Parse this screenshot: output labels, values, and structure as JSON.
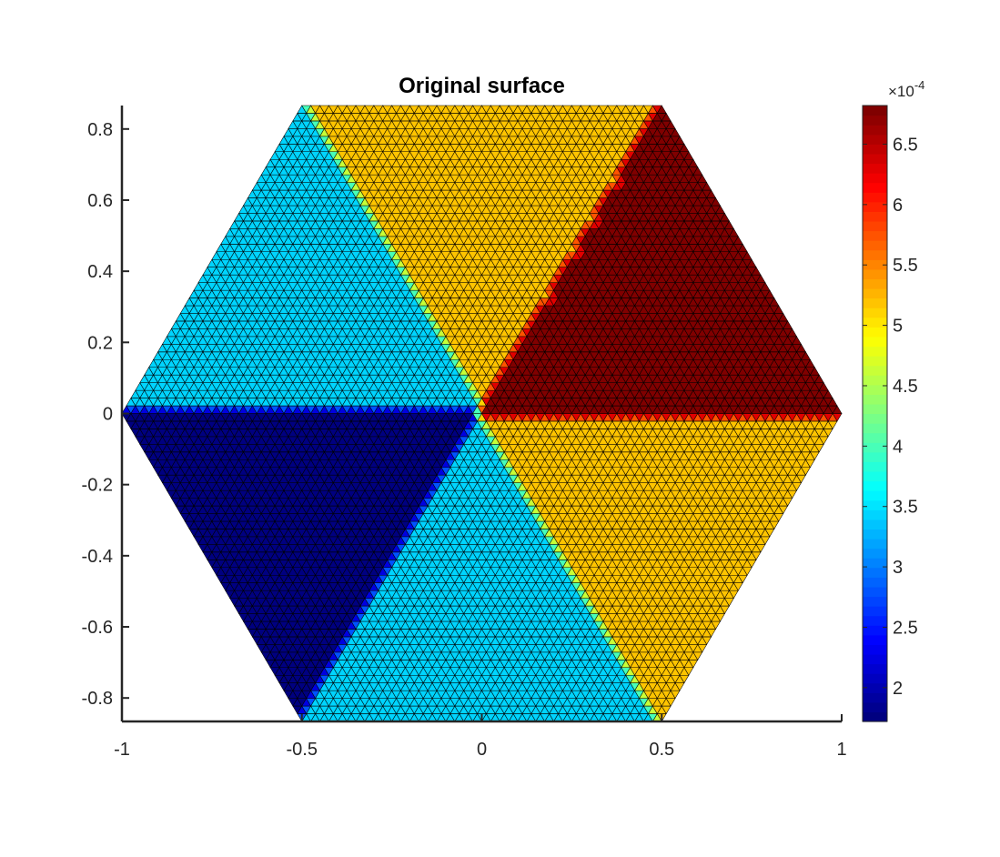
{
  "chart_data": {
    "type": "heatmap",
    "title": "Original surface",
    "xlabel": "",
    "ylabel": "",
    "xlim": [
      -1,
      1
    ],
    "ylim": [
      -0.866,
      0.866
    ],
    "xticks": [
      -1,
      -0.5,
      0,
      0.5,
      1
    ],
    "yticks": [
      -0.8,
      -0.6,
      -0.4,
      -0.2,
      0,
      0.2,
      0.4,
      0.6,
      0.8
    ],
    "xtick_labels": [
      "-1",
      "-0.5",
      "0",
      "0.5",
      "1"
    ],
    "ytick_labels": [
      "-0.8",
      "-0.6",
      "-0.4",
      "-0.2",
      "0",
      "0.2",
      "0.4",
      "0.6",
      "0.8"
    ],
    "domain": "hexagon",
    "mesh": "triangular",
    "mesh_divisions": 40,
    "colormap": "jet",
    "regions": [
      {
        "sector": "upper-left",
        "angle_range_deg": [
          120,
          180
        ],
        "value": 0.00034
      },
      {
        "sector": "top",
        "angle_range_deg": [
          60,
          120
        ],
        "value": 0.00052
      },
      {
        "sector": "upper-right",
        "angle_range_deg": [
          0,
          60
        ],
        "value": 0.00068
      },
      {
        "sector": "lower-right",
        "angle_range_deg": [
          300,
          360
        ],
        "value": 0.00052
      },
      {
        "sector": "bottom",
        "angle_range_deg": [
          240,
          300
        ],
        "value": 0.00034
      },
      {
        "sector": "lower-left",
        "angle_range_deg": [
          180,
          240
        ],
        "value": 0.00017
      }
    ],
    "colorbar": {
      "limits": [
        0.000172,
        0.000682
      ],
      "exponent_base": "×10",
      "exponent_power": "-4",
      "ticks": [
        2,
        2.5,
        3,
        3.5,
        4,
        4.5,
        5,
        5.5,
        6,
        6.5
      ],
      "tick_labels": [
        "2",
        "2.5",
        "3",
        "3.5",
        "4",
        "4.5",
        "5",
        "5.5",
        "6",
        "6.5"
      ],
      "levels": 64
    },
    "grid": false,
    "box": false
  }
}
